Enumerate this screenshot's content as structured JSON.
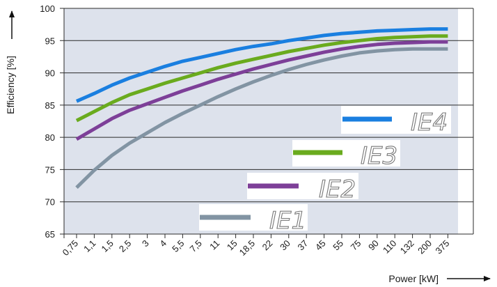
{
  "chart_data": {
    "type": "line",
    "title": "",
    "xlabel": "Power [kW]",
    "ylabel": "Efficiency [%]",
    "ylim": [
      65,
      100
    ],
    "yticks": [
      65,
      70,
      75,
      80,
      85,
      90,
      95,
      100
    ],
    "categories": [
      "0,75",
      "1,1",
      "1,5",
      "2,5",
      "3",
      "4",
      "5,5",
      "7,5",
      "11",
      "15",
      "18,5",
      "22",
      "30",
      "37",
      "45",
      "55",
      "75",
      "90",
      "110",
      "132",
      "200",
      "375"
    ],
    "grid": "horizontal",
    "series": [
      {
        "name": "IE4",
        "color": "#1a7fe0",
        "values": [
          85.6,
          86.8,
          88.1,
          89.2,
          90.1,
          91.0,
          91.8,
          92.4,
          93.0,
          93.6,
          94.1,
          94.5,
          95.0,
          95.4,
          95.8,
          96.1,
          96.3,
          96.5,
          96.6,
          96.7,
          96.8,
          96.8
        ]
      },
      {
        "name": "IE3",
        "color": "#6aab1e",
        "values": [
          82.6,
          84.0,
          85.4,
          86.6,
          87.5,
          88.4,
          89.2,
          90.0,
          90.8,
          91.5,
          92.1,
          92.7,
          93.3,
          93.8,
          94.3,
          94.7,
          95.0,
          95.3,
          95.5,
          95.6,
          95.7,
          95.7
        ]
      },
      {
        "name": "IE2",
        "color": "#7d3f98",
        "values": [
          79.7,
          81.3,
          82.9,
          84.2,
          85.2,
          86.2,
          87.2,
          88.1,
          89.0,
          89.8,
          90.6,
          91.3,
          92.0,
          92.6,
          93.2,
          93.7,
          94.1,
          94.4,
          94.6,
          94.7,
          94.8,
          94.8
        ]
      },
      {
        "name": "IE1",
        "color": "#8294a3",
        "values": [
          72.2,
          74.9,
          77.2,
          79.1,
          80.7,
          82.3,
          83.7,
          85.0,
          86.3,
          87.5,
          88.6,
          89.6,
          90.5,
          91.3,
          92.0,
          92.6,
          93.1,
          93.4,
          93.6,
          93.7,
          93.7,
          93.7
        ]
      }
    ],
    "legend": [
      "IE4",
      "IE3",
      "IE2",
      "IE1"
    ],
    "colors": {
      "plot_background": "#dde2ec",
      "grid": "#2a2a2a"
    }
  }
}
